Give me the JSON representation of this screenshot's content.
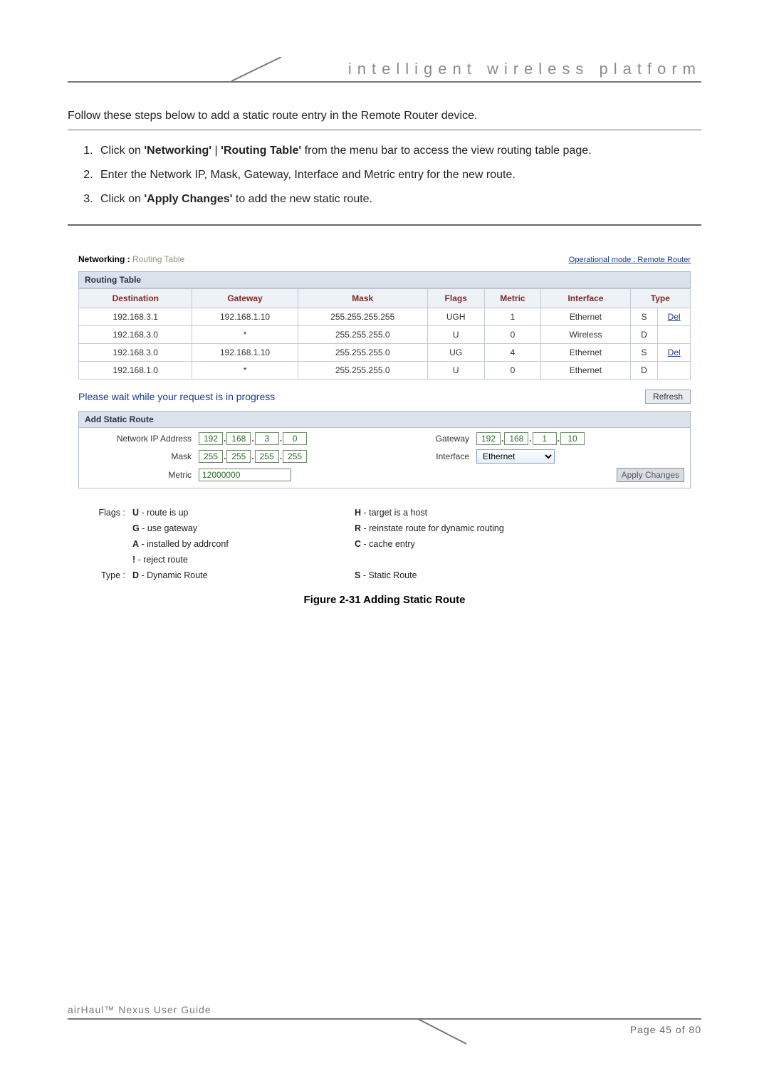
{
  "header": {
    "title": "intelligent   wireless   platform"
  },
  "intro": "Follow these steps below to add a static route entry in the Remote Router device.",
  "steps": [
    {
      "pre": "Click on ",
      "b1": "'Networking'",
      "mid": " | ",
      "b2": "'Routing Table'",
      "post": " from the menu bar to access the view routing table page."
    },
    {
      "pre": "Enter the Network IP, Mask, Gateway, Interface and Metric entry for the new route.",
      "b1": "",
      "mid": "",
      "b2": "",
      "post": ""
    },
    {
      "pre": "Click on ",
      "b1": "'Apply Changes'",
      "mid": "",
      "b2": "",
      "post": " to add the new static route."
    }
  ],
  "shot": {
    "breadcrumb_bold": "Networking : ",
    "breadcrumb_sub": "Routing Table",
    "opmode": "Operational mode : Remote Router",
    "panel1": "Routing Table",
    "cols": [
      "Destination",
      "Gateway",
      "Mask",
      "Flags",
      "Metric",
      "Interface",
      "Type",
      ""
    ],
    "rows": [
      [
        "192.168.3.1",
        "192.168.1.10",
        "255.255.255.255",
        "UGH",
        "1",
        "Ethernet",
        "S",
        "Del"
      ],
      [
        "192.168.3.0",
        "*",
        "255.255.255.0",
        "U",
        "0",
        "Wireless",
        "D",
        ""
      ],
      [
        "192.168.3.0",
        "192.168.1.10",
        "255.255.255.0",
        "UG",
        "4",
        "Ethernet",
        "S",
        "Del"
      ],
      [
        "192.168.1.0",
        "*",
        "255.255.255.0",
        "U",
        "0",
        "Ethernet",
        "D",
        ""
      ]
    ],
    "wait": "Please wait while your request is in progress",
    "refresh": "Refresh",
    "panel2": "Add Static Route",
    "form": {
      "nip_label": "Network IP Address",
      "nip": [
        "192",
        "168",
        "3",
        "0"
      ],
      "gw_label": "Gateway",
      "gw": [
        "192",
        "168",
        "1",
        "10"
      ],
      "mask_label": "Mask",
      "mask": [
        "255",
        "255",
        "255",
        "255"
      ],
      "iface_label": "Interface",
      "iface": "Ethernet",
      "metric_label": "Metric",
      "metric": "12000000",
      "apply": "Apply Changes"
    },
    "legend": {
      "flags_key": "Flags :",
      "type_key": "Type :",
      "items": [
        {
          "l": "U",
          "ld": " - route is up",
          "r": "H",
          "rd": " - target is a host"
        },
        {
          "l": "G",
          "ld": " - use gateway",
          "r": "R",
          "rd": " - reinstate route for dynamic routing"
        },
        {
          "l": "A",
          "ld": " - installed by addrconf",
          "r": "C",
          "rd": " - cache entry"
        },
        {
          "l": "!",
          "ld": " - reject route",
          "r": "",
          "rd": ""
        },
        {
          "l": "D",
          "ld": " - Dynamic Route",
          "r": "S",
          "rd": " - Static Route"
        }
      ]
    }
  },
  "figcaption": "Figure 2-31 Adding Static Route",
  "footer": {
    "product": "airHaul™ Nexus User Guide",
    "page": "Page 45 of 80"
  },
  "colors": {
    "link": "#1a3a8a",
    "header_red": "#7a2a2a",
    "panel": "#dbe2ec"
  }
}
